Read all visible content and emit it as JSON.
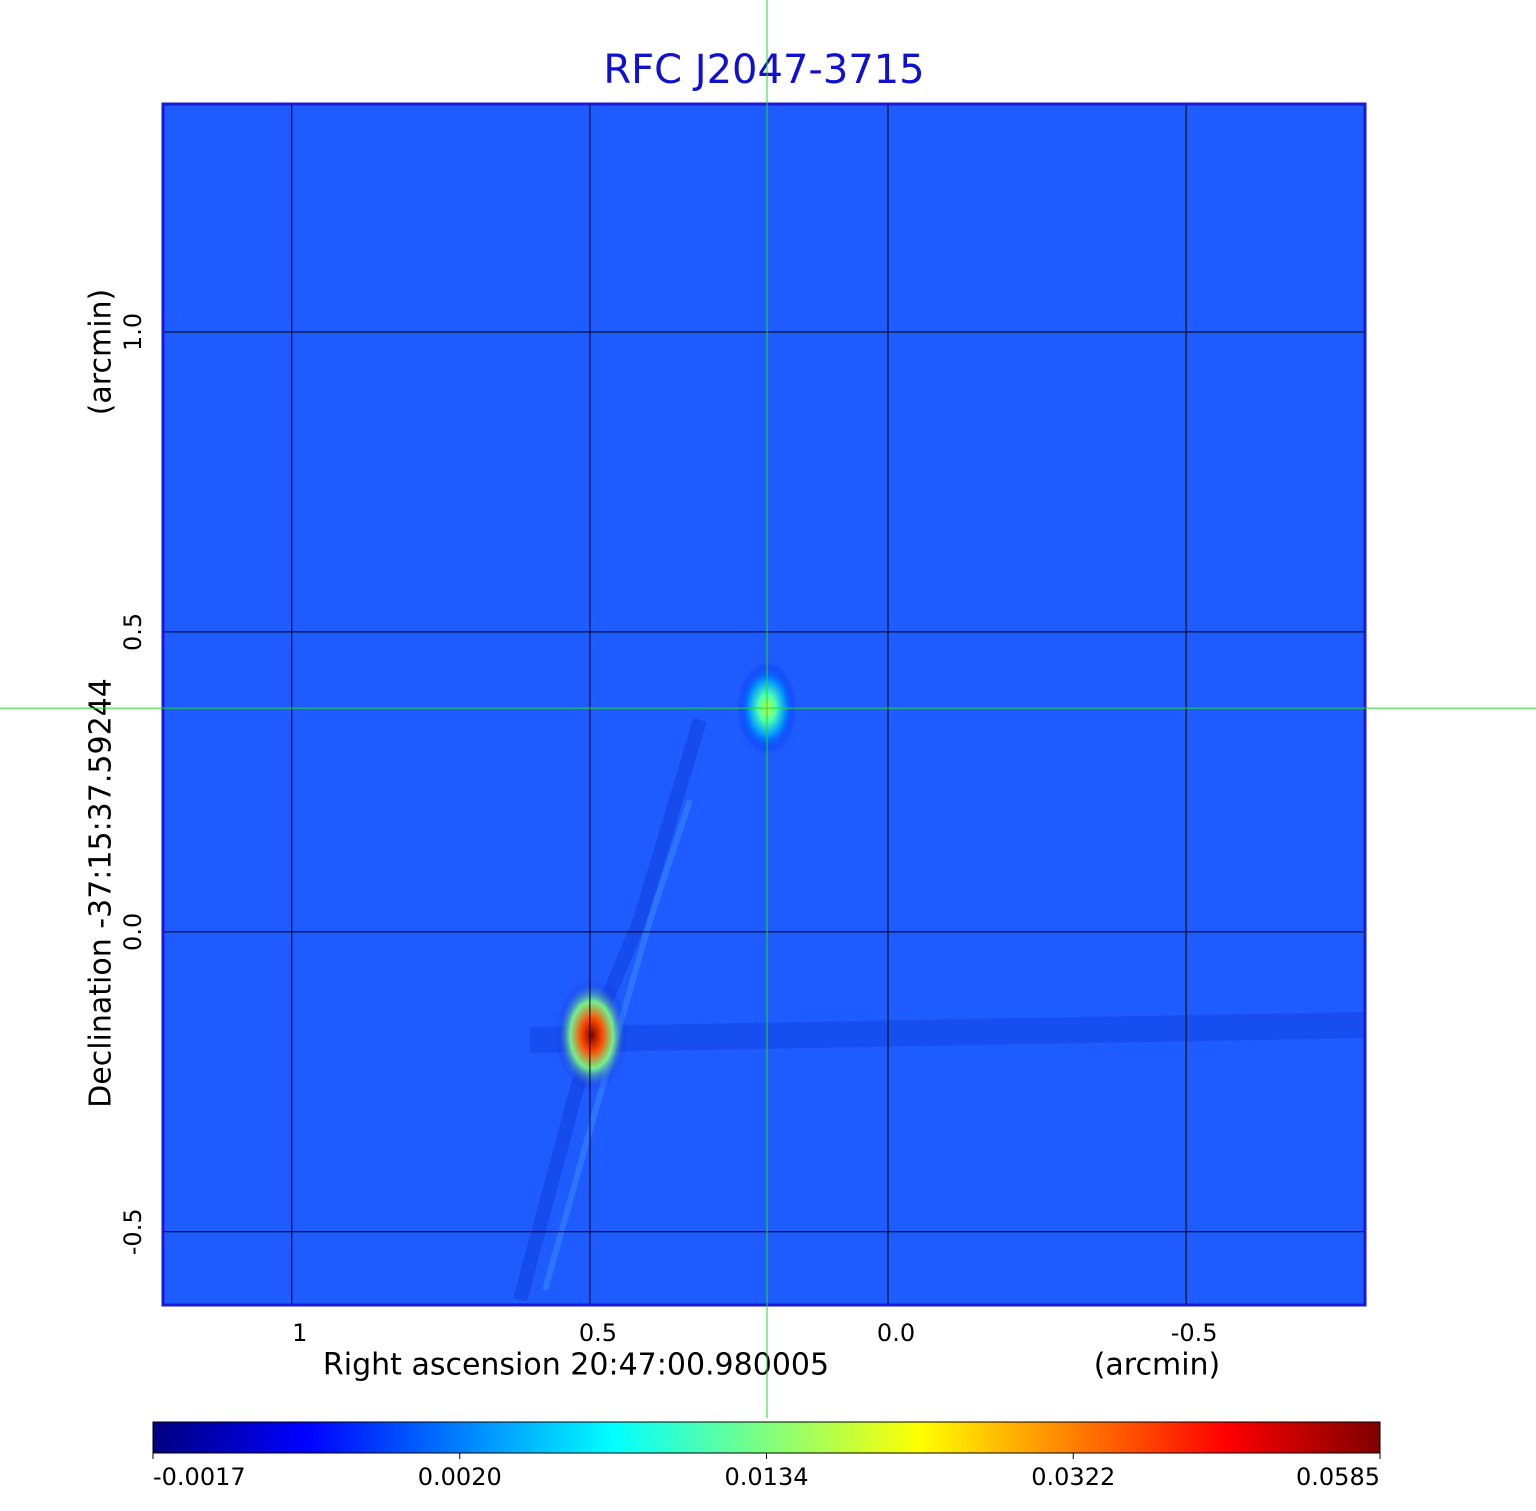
{
  "chart_data": {
    "type": "image",
    "title": "RFC J2047-3715",
    "xlabel": "Right ascension  20:47:00.980005",
    "xunit": "(arcmin)",
    "ylabel": "Declination  -37:15:37.59244",
    "yunit": "(arcmin)",
    "xlim": [
      1.216,
      -0.8
    ],
    "ylim": [
      -0.622,
      1.38
    ],
    "xticks": [
      1.0,
      0.5,
      {
        "value": 0,
        "label": "0.0"
      },
      -0.5
    ],
    "yticks": [
      -0.5,
      {
        "value": 0,
        "label": "0.0"
      },
      0.5,
      {
        "value": 1,
        "label": "1.0"
      }
    ],
    "grid": true,
    "background_color": "#1e5cff",
    "frame_color": "#1a1ad6",
    "title_color": "#1010d0",
    "crosshair": {
      "x": 0.203,
      "y": 0.373,
      "color": "#22dd22"
    },
    "sources": [
      {
        "x": 0.497,
        "y": -0.172,
        "value": 0.0585
      },
      {
        "x": 0.203,
        "y": 0.373,
        "value": 0.018
      }
    ],
    "colormap": [
      "#00007f",
      "#0000ff",
      "#007fff",
      "#00ffff",
      "#7fff7f",
      "#ffff00",
      "#ff7f00",
      "#ff0000",
      "#7f0000"
    ],
    "colorbar_ticks": [
      -0.0017,
      {
        "value": 0.002,
        "label": "0.0020"
      },
      0.0134,
      0.0322,
      0.0585
    ]
  }
}
